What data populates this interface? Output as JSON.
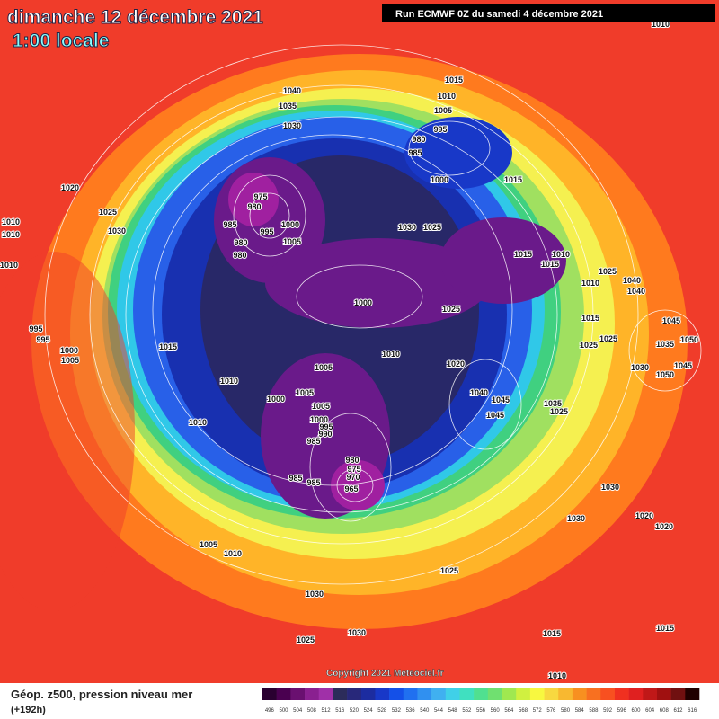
{
  "header": {
    "date": "dimanche 12 décembre 2021",
    "time": "1:00 locale",
    "run": "Run ECMWF 0Z du samedi 4 décembre 2021"
  },
  "copyright": "Copyright 2021 Meteociel.fr",
  "footer": {
    "caption": "Géop. z500, pression niveau mer",
    "lead": "(+192h)"
  },
  "scale": {
    "labels": [
      496,
      500,
      504,
      508,
      512,
      516,
      520,
      524,
      528,
      532,
      536,
      540,
      544,
      548,
      552,
      556,
      560,
      564,
      568,
      572,
      576,
      580,
      584,
      588,
      592,
      596,
      600,
      604,
      608,
      612,
      616
    ],
    "colors": [
      "#2a0030",
      "#4a0050",
      "#6a1070",
      "#8a2090",
      "#a030a8",
      "#2c2c5a",
      "#28287a",
      "#1c2ca0",
      "#1838c8",
      "#1450e8",
      "#2070f0",
      "#3090f0",
      "#40b0f0",
      "#40d0e8",
      "#40e0c0",
      "#50e090",
      "#70e070",
      "#a0e850",
      "#d0f040",
      "#f8f840",
      "#f8d840",
      "#f8b830",
      "#f89020",
      "#f87020",
      "#f85020",
      "#f03020",
      "#e02020",
      "#c01818",
      "#a01010",
      "#701010",
      "#200000"
    ]
  },
  "isobar_labels": [
    "1010",
    "1015",
    "1040",
    "1010",
    "1035",
    "1005",
    "1030",
    "995",
    "980",
    "985",
    "1000",
    "1015",
    "1020",
    "975",
    "980",
    "1025",
    "985",
    "1000",
    "995",
    "1030",
    "1005",
    "980",
    "1030",
    "1025",
    "1010",
    "1010",
    "980",
    "1015",
    "1010",
    "1015",
    "1010",
    "1025",
    "1040",
    "1040",
    "1010",
    "1000",
    "1025",
    "1015",
    "995",
    "995",
    "1015",
    "1000",
    "1005",
    "1010",
    "1025",
    "1025",
    "1045",
    "1050",
    "1035",
    "1030",
    "1045",
    "1050",
    "1005",
    "1010",
    "1020",
    "1040",
    "1045",
    "1045",
    "1035",
    "1025",
    "1000",
    "1005",
    "1005",
    "1000",
    "995",
    "990",
    "985",
    "1010",
    "980",
    "975",
    "970",
    "965",
    "985",
    "985",
    "1030",
    "1030",
    "1020",
    "1020",
    "1005",
    "1010",
    "1025",
    "1030",
    "1025",
    "1030",
    "1015",
    "1015",
    "1010"
  ]
}
